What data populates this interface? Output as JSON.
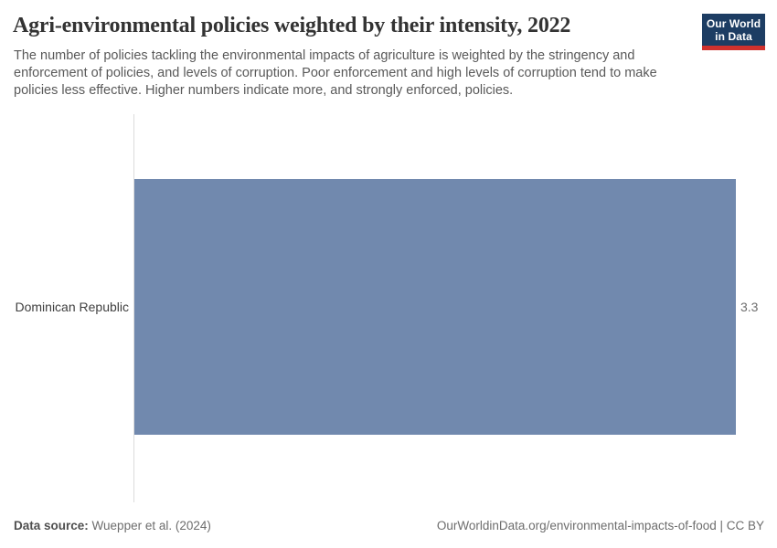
{
  "header": {
    "title": "Agri-environmental policies weighted by their intensity, 2022",
    "subtitle_lines": [
      "The number of policies tackling the environmental impacts of agriculture is weighted by the stringency and",
      "enforcement of policies, and levels of corruption. Poor enforcement and high levels of corruption tend to make",
      "policies less effective. Higher numbers indicate more, and strongly enforced, policies."
    ]
  },
  "logo": {
    "line1": "Our World",
    "line2": "in Data",
    "bg_color": "#1d3d63",
    "accent_color": "#d0312d"
  },
  "chart_data": {
    "type": "bar",
    "orientation": "horizontal",
    "title": "Agri-environmental policies weighted by their intensity, 2022",
    "categories": [
      "Dominican Republic"
    ],
    "values": [
      3.3
    ],
    "value_labels": [
      "3.3"
    ],
    "xlim": [
      0,
      3.3
    ],
    "bar_color": "#7189ae",
    "axis_line_color": "#dcdcdc",
    "grid": false,
    "legend": "none"
  },
  "footer": {
    "source_label": "Data source:",
    "source_value": "Wuepper et al. (2024)",
    "link": "OurWorldinData.org/environmental-impacts-of-food | CC BY"
  }
}
